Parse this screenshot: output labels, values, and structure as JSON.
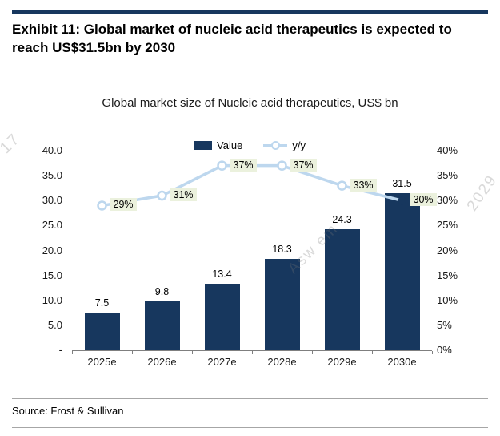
{
  "page": {
    "exhibit_title": "Exhibit 11: Global market of nucleic acid therapeutics is expected to reach US$31.5bn by 2030",
    "source": "Source: Frost & Sullivan"
  },
  "chart_data": {
    "type": "bar",
    "title": "Global market size of Nucleic acid therapeutics, US$ bn",
    "categories": [
      "2025e",
      "2026e",
      "2027e",
      "2028e",
      "2029e",
      "2030e"
    ],
    "series": [
      {
        "name": "Value",
        "type": "bar",
        "values": [
          7.5,
          9.8,
          13.4,
          18.3,
          24.3,
          31.5
        ],
        "labels": [
          "7.5",
          "9.8",
          "13.4",
          "18.3",
          "24.3",
          "31.5"
        ],
        "color": "#17375e"
      },
      {
        "name": "y/y",
        "type": "line",
        "values": [
          29,
          31,
          37,
          37,
          33,
          30
        ],
        "labels": [
          "29%",
          "31%",
          "37%",
          "37%",
          "33%",
          "30%"
        ],
        "color": "#bdd7ee",
        "label_bg": "#ebf1dd",
        "last_marker_color": "#17375e"
      }
    ],
    "left_axis": {
      "min": 0,
      "max": 40,
      "step": 5,
      "tick_labels": [
        "-",
        "5.0",
        "10.0",
        "15.0",
        "20.0",
        "25.0",
        "30.0",
        "35.0",
        "40.0"
      ]
    },
    "right_axis": {
      "min": 0,
      "max": 40,
      "step": 5,
      "tick_labels": [
        "0%",
        "5%",
        "10%",
        "15%",
        "20%",
        "25%",
        "30%",
        "35%",
        "40%"
      ]
    },
    "legend_position": "top",
    "grid": false
  },
  "watermarks": [
    "17",
    "Asw em",
    "2029"
  ],
  "colors": {
    "accent_navy": "#17375e",
    "line_blue": "#bdd7ee",
    "pct_label_bg": "#ebf1dd",
    "axis_gray": "#7f7f7f"
  }
}
